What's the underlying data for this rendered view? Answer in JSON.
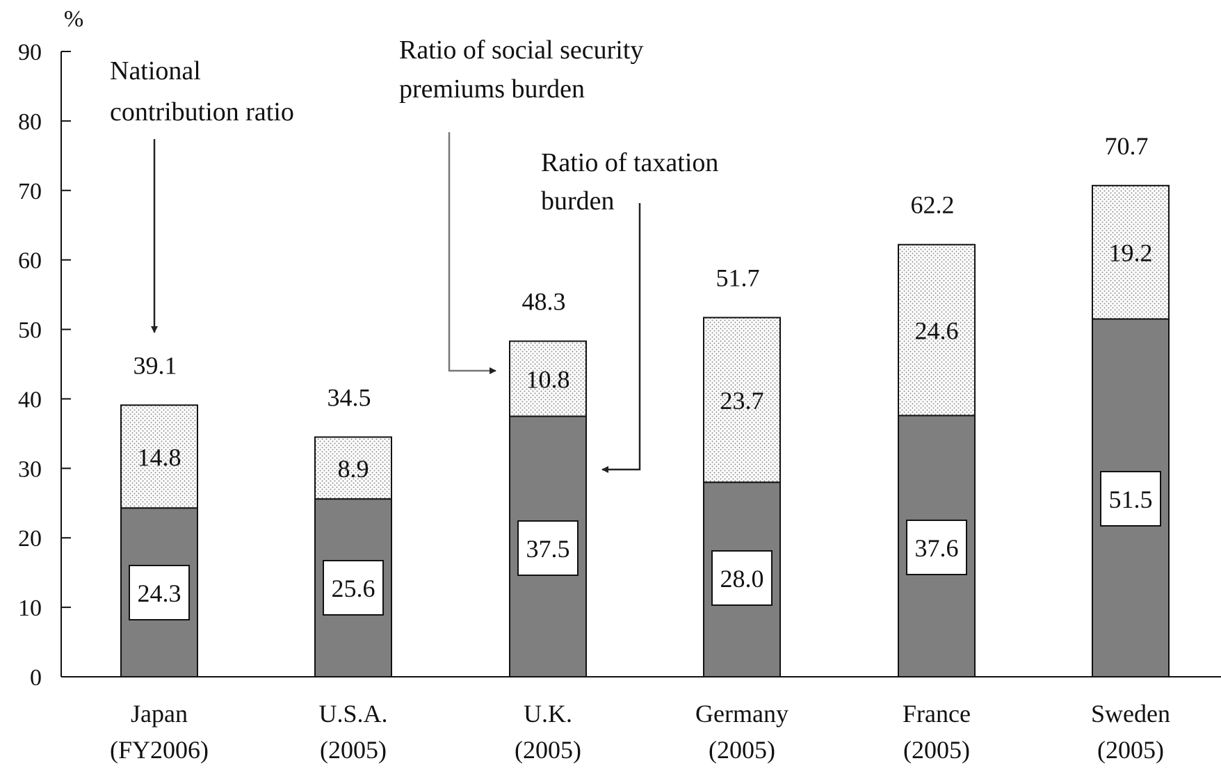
{
  "chart_data": {
    "type": "bar",
    "stacked": true,
    "title": "",
    "ylabel": "%",
    "xlabel": "",
    "ylim": [
      0,
      90
    ],
    "yticks": [
      "0",
      "10",
      "20",
      "30",
      "40",
      "50",
      "60",
      "70",
      "80",
      "90"
    ],
    "categories": [
      [
        "Japan",
        "(FY2006)"
      ],
      [
        "U.S.A.",
        "(2005)"
      ],
      [
        "U.K.",
        "(2005)"
      ],
      [
        "Germany",
        "(2005)"
      ],
      [
        "France",
        "(2005)"
      ],
      [
        "Sweden",
        "(2005)"
      ]
    ],
    "series": [
      {
        "values": [
          24.3,
          25.6,
          37.5,
          28.0,
          37.6,
          51.5
        ],
        "labels": [
          "24.3",
          "25.6",
          "37.5",
          "28.0",
          "37.6",
          "51.5"
        ],
        "color": "#7f7f7f",
        "pattern": "solid"
      },
      {
        "values": [
          14.8,
          8.9,
          10.8,
          23.7,
          24.6,
          19.2
        ],
        "labels": [
          "14.8",
          "8.9",
          "10.8",
          "23.7",
          "24.6",
          "19.2"
        ],
        "color": "#ffffff",
        "pattern": "dotted"
      }
    ],
    "totals": [
      "39.1",
      "34.5",
      "48.3",
      "51.7",
      "62.2",
      "70.7"
    ],
    "annotations": {
      "national": [
        "National",
        "contribution ratio"
      ],
      "social": [
        "Ratio of social security",
        "premiums burden"
      ],
      "taxation": [
        "Ratio of taxation",
        "burden"
      ]
    }
  }
}
